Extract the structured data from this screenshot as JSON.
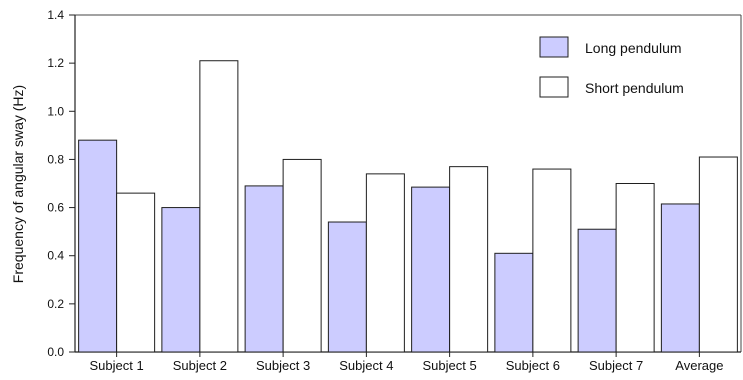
{
  "chart_data": {
    "type": "bar",
    "categories": [
      "Subject 1",
      "Subject 2",
      "Subject 3",
      "Subject 4",
      "Subject 5",
      "Subject 6",
      "Subject 7",
      "Average"
    ],
    "series": [
      {
        "name": "Long pendulum",
        "color": "#ccccff",
        "values": [
          0.88,
          0.6,
          0.69,
          0.54,
          0.685,
          0.41,
          0.51,
          0.615
        ]
      },
      {
        "name": "Short pendulum",
        "color": "#ffffff",
        "values": [
          0.66,
          1.21,
          0.8,
          0.74,
          0.77,
          0.76,
          0.7,
          0.81
        ]
      }
    ],
    "ylabel": "Frequency of angular sway (Hz)",
    "xlabel": "",
    "title": "",
    "ylim": [
      0,
      1.4
    ],
    "yticks": [
      "0.0",
      "0.2",
      "0.4",
      "0.6",
      "0.8",
      "1.0",
      "1.2",
      "1.4"
    ],
    "grid": false,
    "legend": "top-right"
  }
}
